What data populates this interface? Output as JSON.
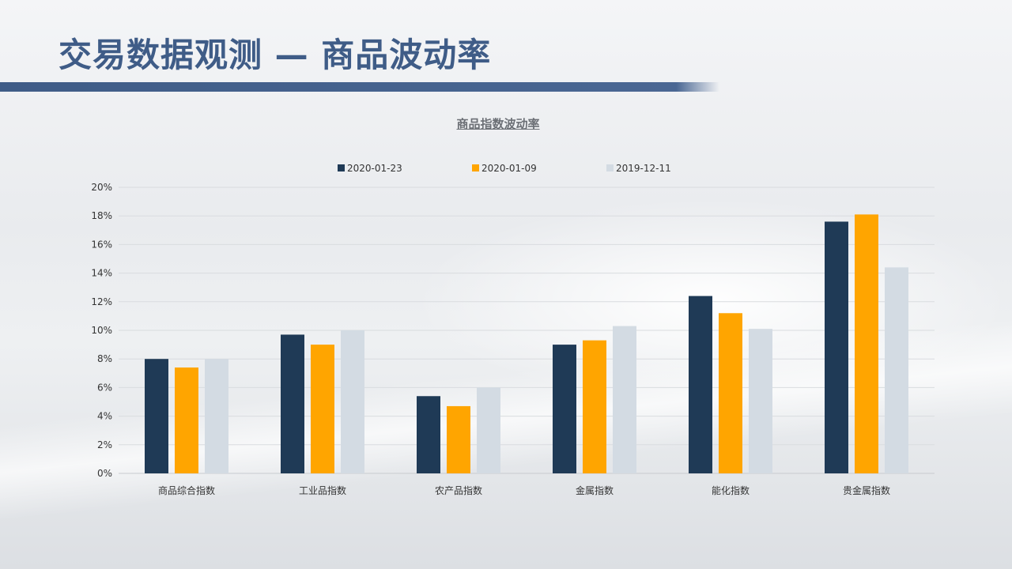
{
  "header": {
    "title": "交易数据观测 — 商品波动率"
  },
  "chart_data": {
    "type": "bar",
    "title": "商品指数波动率",
    "categories": [
      "商品综合指数",
      "工业品指数",
      "农产品指数",
      "金属指数",
      "能化指数",
      "贵金属指数"
    ],
    "series": [
      {
        "name": "2020-01-23",
        "color": "#1f3a56",
        "values": [
          8.0,
          9.7,
          5.4,
          9.0,
          12.4,
          17.6
        ]
      },
      {
        "name": "2020-01-09",
        "color": "#ffa500",
        "values": [
          7.4,
          9.0,
          4.7,
          9.3,
          11.2,
          18.1
        ]
      },
      {
        "name": "2019-12-11",
        "color": "#d3dbe3",
        "values": [
          8.0,
          10.0,
          6.0,
          10.3,
          10.1,
          14.4
        ]
      }
    ],
    "y_ticks": [
      "0%",
      "2%",
      "4%",
      "6%",
      "8%",
      "10%",
      "12%",
      "14%",
      "16%",
      "18%",
      "20%"
    ],
    "ylim": [
      0,
      20
    ],
    "grid": true,
    "legend_position": "top"
  }
}
